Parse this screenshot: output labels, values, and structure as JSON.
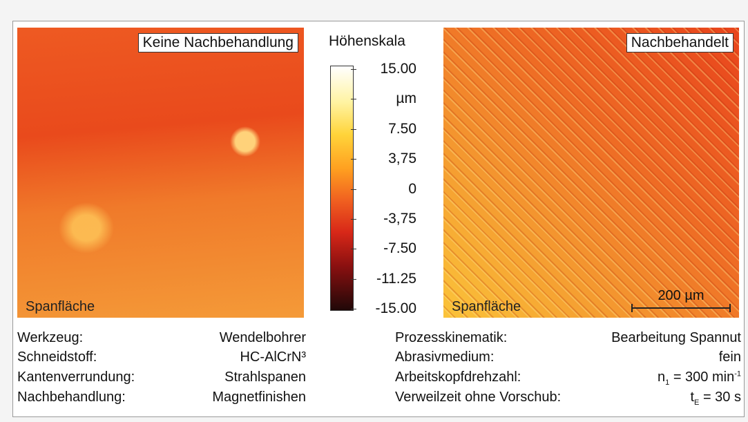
{
  "left_panel": {
    "label": "Keine Nachbehandlung",
    "corner": "Spanfläche"
  },
  "right_panel": {
    "label": "Nachbehandelt",
    "corner": "Spanfläche",
    "scale_bar": "200 µm"
  },
  "height_scale": {
    "title": "Höhenskala",
    "labels": [
      "15.00",
      "µm",
      "7.50",
      "3,75",
      "0",
      "-3,75",
      "-7.50",
      "-11.25",
      "-15.00"
    ]
  },
  "left_table": {
    "rows": [
      [
        "Werkzeug:",
        "Wendelbohrer"
      ],
      [
        "Schneidstoff:",
        "HC-AlCrN³"
      ],
      [
        "Kantenverrundung:",
        "Strahlspanen"
      ],
      [
        "Nachbehandlung:",
        "Magnetfinishen"
      ]
    ]
  },
  "right_table": {
    "rows": [
      {
        "key": "Prozesskinematik:",
        "value": {
          "base": "Bearbeitung Spannut"
        }
      },
      {
        "key": "Abrasivmedium:",
        "value": {
          "base": "fein"
        }
      },
      {
        "key": "Arbeitskopfdrehzahl:",
        "value": {
          "base": "n",
          "sub": "1",
          "rest": " = 300 min",
          "sup": "-1"
        }
      },
      {
        "key": "Verweilzeit ohne Vorschub:",
        "value": {
          "base": "t",
          "sub": "E",
          "rest": " = 30 s"
        }
      }
    ]
  }
}
